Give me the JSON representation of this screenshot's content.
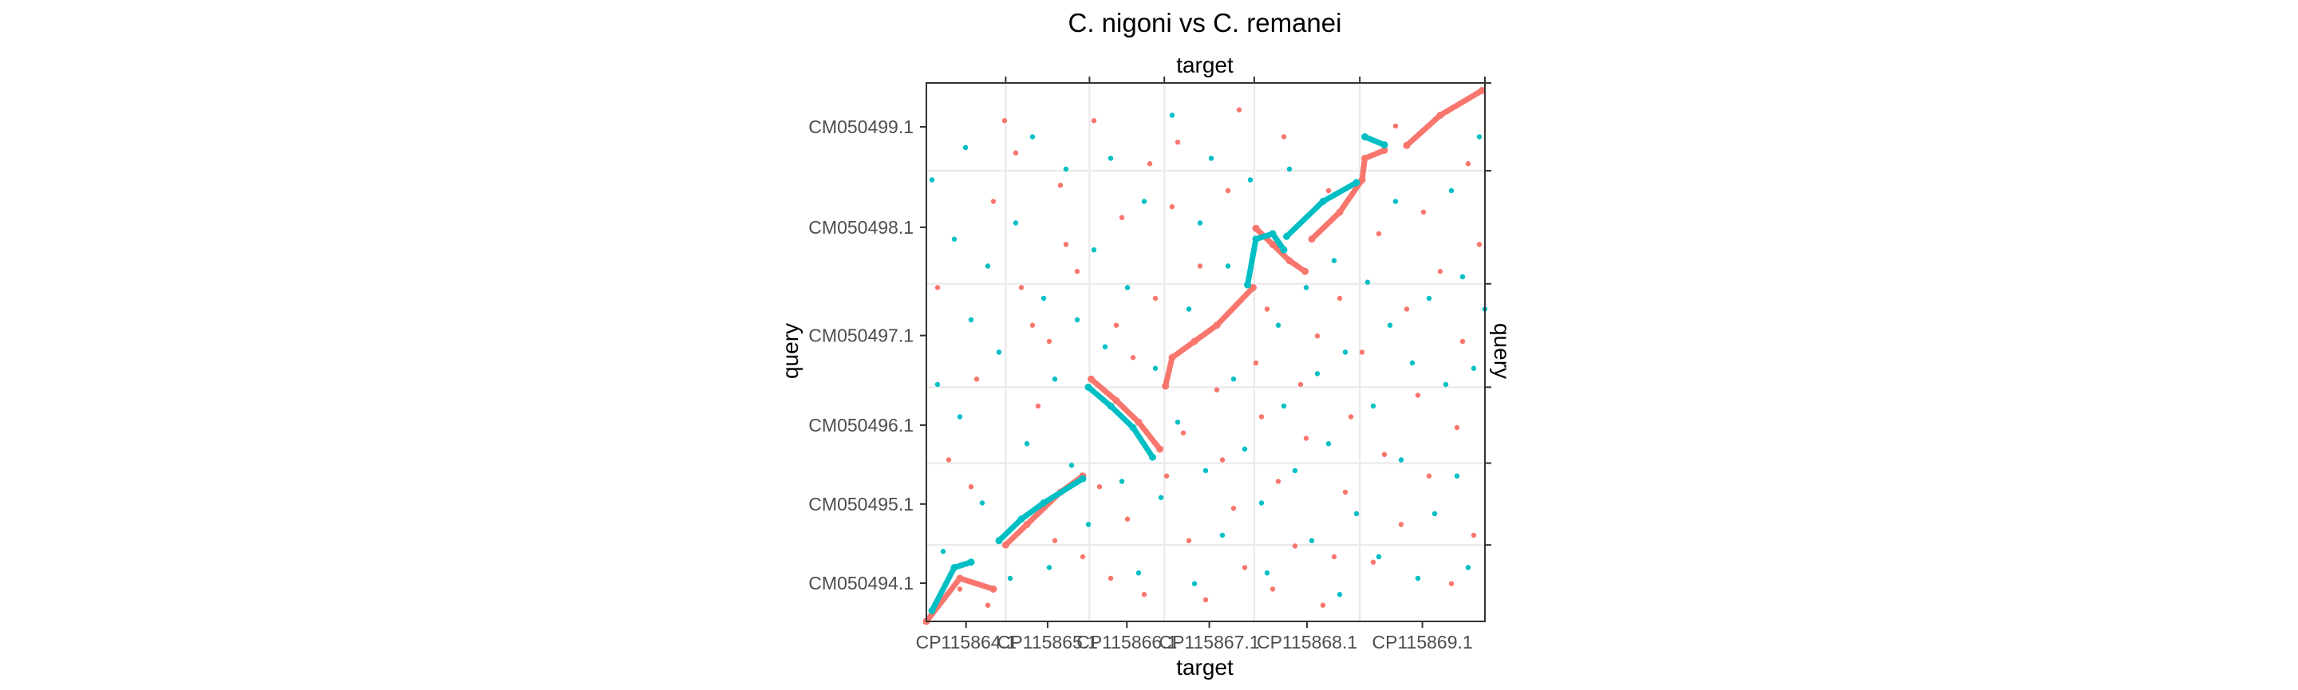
{
  "chart_data": {
    "type": "scatter",
    "title": "C. nigoni vs C. remanei",
    "xlabel": "target",
    "x2label": "target",
    "ylabel": "query",
    "y2label": "query",
    "grid": true,
    "legend": "none",
    "xlim": [
      0,
      100
    ],
    "ylim": [
      0,
      100
    ],
    "x_chromosomes": [
      {
        "label": "CP115864.1",
        "start": 0,
        "end": 14.2
      },
      {
        "label": "CP115865.1",
        "start": 14.2,
        "end": 29.2
      },
      {
        "label": "CP115866.1",
        "start": 29.2,
        "end": 42.6
      },
      {
        "label": "CP115867.1",
        "start": 42.6,
        "end": 58.7
      },
      {
        "label": "CP115868.1",
        "start": 58.7,
        "end": 77.6
      },
      {
        "label": "CP115869.1",
        "start": 77.6,
        "end": 100
      }
    ],
    "y_chromosomes": [
      {
        "label": "CM050494.1",
        "start": 0,
        "end": 14.2
      },
      {
        "label": "CM050495.1",
        "start": 14.2,
        "end": 29.4
      },
      {
        "label": "CM050496.1",
        "start": 29.4,
        "end": 43.5
      },
      {
        "label": "CM050497.1",
        "start": 43.5,
        "end": 62.7
      },
      {
        "label": "CM050498.1",
        "start": 62.7,
        "end": 83.7
      },
      {
        "label": "CM050499.1",
        "start": 83.7,
        "end": 100
      }
    ],
    "series": [
      {
        "color": "#F8766D",
        "segments": [
          [
            [
              0,
              0
            ],
            [
              6,
              8
            ],
            [
              12,
              6
            ]
          ],
          [
            [
              14.2,
              14.2
            ],
            [
              18,
              18
            ],
            [
              24,
              24
            ],
            [
              28,
              27
            ]
          ],
          [
            [
              29.5,
              45
            ],
            [
              34,
              41
            ],
            [
              38,
              37
            ],
            [
              41.8,
              32
            ]
          ],
          [
            [
              42.8,
              43.7
            ],
            [
              44,
              49
            ],
            [
              48,
              52
            ],
            [
              52,
              55
            ],
            [
              58.5,
              62
            ]
          ],
          [
            [
              59,
              73
            ],
            [
              62,
              70
            ],
            [
              65,
              67
            ],
            [
              67.8,
              65
            ]
          ],
          [
            [
              69,
              71
            ],
            [
              74,
              76
            ],
            [
              78,
              82
            ],
            [
              78.5,
              86
            ],
            [
              82,
              87.5
            ]
          ],
          [
            [
              86,
              88.4
            ],
            [
              92,
              94
            ],
            [
              99.5,
              98.6
            ]
          ]
        ],
        "points": [
          [
            2,
            62
          ],
          [
            4,
            30
          ],
          [
            6,
            6
          ],
          [
            8,
            25
          ],
          [
            9,
            45
          ],
          [
            11,
            3
          ],
          [
            12,
            78
          ],
          [
            14,
            93
          ],
          [
            16,
            87
          ],
          [
            17,
            62
          ],
          [
            19,
            55
          ],
          [
            20,
            40
          ],
          [
            22,
            52
          ],
          [
            23,
            15
          ],
          [
            24,
            81
          ],
          [
            25,
            70
          ],
          [
            27,
            65
          ],
          [
            28,
            12
          ],
          [
            30,
            93
          ],
          [
            31,
            25
          ],
          [
            33,
            8
          ],
          [
            34,
            55
          ],
          [
            35,
            75
          ],
          [
            36,
            19
          ],
          [
            37,
            49
          ],
          [
            39,
            5
          ],
          [
            40,
            85
          ],
          [
            41,
            60
          ],
          [
            43,
            27
          ],
          [
            44,
            77
          ],
          [
            45,
            89
          ],
          [
            46,
            35
          ],
          [
            47,
            15
          ],
          [
            49,
            66
          ],
          [
            50,
            4
          ],
          [
            52,
            43
          ],
          [
            53,
            30
          ],
          [
            54,
            80
          ],
          [
            55,
            21
          ],
          [
            56,
            95
          ],
          [
            57,
            10
          ],
          [
            59,
            48
          ],
          [
            60,
            38
          ],
          [
            61,
            58
          ],
          [
            62,
            6
          ],
          [
            63,
            26
          ],
          [
            64,
            90
          ],
          [
            66,
            14
          ],
          [
            67,
            44
          ],
          [
            68,
            34
          ],
          [
            70,
            53
          ],
          [
            71,
            3
          ],
          [
            72,
            80
          ],
          [
            73,
            12
          ],
          [
            74,
            60
          ],
          [
            75,
            24
          ],
          [
            76,
            38
          ],
          [
            78,
            50
          ],
          [
            80,
            11
          ],
          [
            81,
            72
          ],
          [
            82,
            31
          ],
          [
            84,
            92
          ],
          [
            85,
            18
          ],
          [
            86,
            58
          ],
          [
            88,
            42
          ],
          [
            89,
            76
          ],
          [
            90,
            27
          ],
          [
            92,
            65
          ],
          [
            94,
            7
          ],
          [
            95,
            36
          ],
          [
            96,
            52
          ],
          [
            97,
            85
          ],
          [
            98,
            16
          ],
          [
            99,
            70
          ]
        ]
      },
      {
        "color": "#00BFC4",
        "segments": [
          [
            [
              1,
              2
            ],
            [
              5,
              10
            ],
            [
              8,
              11
            ]
          ],
          [
            [
              13,
              15
            ],
            [
              17,
              19
            ],
            [
              21,
              22
            ],
            [
              28,
              26.5
            ]
          ],
          [
            [
              29,
              43.5
            ],
            [
              33,
              40
            ],
            [
              37,
              36
            ],
            [
              40.5,
              30.5
            ]
          ],
          [
            [
              57.5,
              62.5
            ],
            [
              59,
              71
            ],
            [
              62,
              72
            ],
            [
              64,
              69
            ]
          ],
          [
            [
              64.5,
              71.5
            ],
            [
              71,
              78
            ],
            [
              77,
              81.5
            ]
          ],
          [
            [
              78.5,
              90
            ],
            [
              82,
              88.5
            ]
          ]
        ],
        "points": [
          [
            1,
            82
          ],
          [
            2,
            44
          ],
          [
            3,
            13
          ],
          [
            5,
            71
          ],
          [
            6,
            38
          ],
          [
            7,
            88
          ],
          [
            8,
            56
          ],
          [
            10,
            22
          ],
          [
            11,
            66
          ],
          [
            13,
            50
          ],
          [
            15,
            8
          ],
          [
            16,
            74
          ],
          [
            18,
            33
          ],
          [
            19,
            90
          ],
          [
            21,
            60
          ],
          [
            22,
            10
          ],
          [
            23,
            45
          ],
          [
            25,
            84
          ],
          [
            26,
            29
          ],
          [
            27,
            56
          ],
          [
            29,
            18
          ],
          [
            30,
            69
          ],
          [
            32,
            51
          ],
          [
            33,
            86
          ],
          [
            35,
            26
          ],
          [
            36,
            62
          ],
          [
            38,
            9
          ],
          [
            39,
            78
          ],
          [
            41,
            47
          ],
          [
            42,
            23
          ],
          [
            44,
            94
          ],
          [
            45,
            37
          ],
          [
            47,
            58
          ],
          [
            48,
            7
          ],
          [
            49,
            74
          ],
          [
            50,
            28
          ],
          [
            51,
            86
          ],
          [
            53,
            16
          ],
          [
            54,
            66
          ],
          [
            55,
            45
          ],
          [
            57,
            32
          ],
          [
            58,
            82
          ],
          [
            60,
            22
          ],
          [
            61,
            9
          ],
          [
            63,
            55
          ],
          [
            64,
            40
          ],
          [
            65,
            84
          ],
          [
            66,
            28
          ],
          [
            68,
            62
          ],
          [
            69,
            15
          ],
          [
            70,
            46
          ],
          [
            72,
            33
          ],
          [
            73,
            67
          ],
          [
            74,
            5
          ],
          [
            75,
            50
          ],
          [
            77,
            20
          ],
          [
            79,
            63
          ],
          [
            80,
            40
          ],
          [
            81,
            12
          ],
          [
            83,
            55
          ],
          [
            84,
            78
          ],
          [
            85,
            30
          ],
          [
            87,
            48
          ],
          [
            88,
            8
          ],
          [
            90,
            60
          ],
          [
            91,
            20
          ],
          [
            93,
            44
          ],
          [
            94,
            80
          ],
          [
            95,
            27
          ],
          [
            96,
            64
          ],
          [
            97,
            10
          ],
          [
            98,
            47
          ],
          [
            99,
            90
          ],
          [
            100,
            58
          ]
        ]
      }
    ]
  }
}
